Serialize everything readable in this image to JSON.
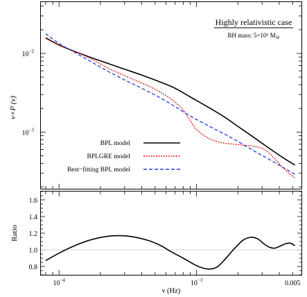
{
  "chart_data": [
    {
      "type": "line",
      "panel": "top",
      "annotation_title": "Highly relativistic case",
      "annotation_sub": "BH mass: 5×10⁶ M",
      "annotation_sun": "⊙",
      "xlabel": "",
      "ylabel": "ν×P (ν)",
      "xscale": "log",
      "yscale": "log",
      "xlim": [
        7.38e-05,
        0.0058
      ],
      "ylim": [
        0.00019,
        0.045
      ],
      "yticks": [
        {
          "value": 0.01,
          "base": "10",
          "exp": "−2"
        },
        {
          "value": 0.001,
          "base": "10",
          "exp": "−3"
        }
      ],
      "legend_position": "bottom-left",
      "series": [
        {
          "name": "BPL model",
          "color": "#000000",
          "dash": "solid",
          "x": [
            8e-05,
            0.0001,
            0.00013,
            0.00017,
            0.00022,
            0.0003,
            0.0004,
            0.00055,
            0.0007,
            0.0009,
            0.0012,
            0.0016,
            0.002,
            0.0026,
            0.0033,
            0.0042,
            0.0052
          ],
          "y": [
            0.0158,
            0.0128,
            0.0106,
            0.0089,
            0.0076,
            0.0063,
            0.0053,
            0.0043,
            0.0036,
            0.0028,
            0.0021,
            0.00155,
            0.00118,
            0.00086,
            0.00064,
            0.00048,
            0.00038
          ]
        },
        {
          "name": "BPLGRE model",
          "color": "#e8140f",
          "dash": "dotted",
          "x": [
            8e-05,
            0.0001,
            0.00013,
            0.00017,
            0.00022,
            0.0003,
            0.0004,
            0.0005,
            0.0006,
            0.0007,
            0.0008,
            0.0009,
            0.001,
            0.0012,
            0.0014,
            0.0016,
            0.0019,
            0.0022,
            0.0026,
            0.003,
            0.0033,
            0.0037,
            0.0042,
            0.0047,
            0.0052
          ],
          "y": [
            0.0155,
            0.0127,
            0.0106,
            0.0086,
            0.0067,
            0.0052,
            0.0042,
            0.0035,
            0.0029,
            0.0024,
            0.0019,
            0.0014,
            0.00108,
            0.00085,
            0.00076,
            0.00072,
            0.0007,
            0.00068,
            0.00066,
            0.00062,
            0.00056,
            0.00046,
            0.00036,
            0.0003,
            0.00026
          ]
        },
        {
          "name": "Best−fitting BPL model",
          "color": "#1f3fd6",
          "dash": "dashed",
          "x": [
            8e-05,
            0.0001,
            0.00013,
            0.00017,
            0.00022,
            0.0003,
            0.0004,
            0.00055,
            0.0007,
            0.0009,
            0.0012,
            0.0016,
            0.002,
            0.0026,
            0.0033,
            0.0042,
            0.0052
          ],
          "y": [
            0.0178,
            0.0134,
            0.0103,
            0.0079,
            0.0061,
            0.0046,
            0.0036,
            0.0027,
            0.0021,
            0.0016,
            0.00122,
            0.00094,
            0.00076,
            0.00058,
            0.00046,
            0.00036,
            0.00029
          ]
        }
      ]
    },
    {
      "type": "line",
      "panel": "bottom",
      "xlabel": "ν (Hz)",
      "ylabel": "Ratio",
      "xscale": "log",
      "xlim": [
        7.38e-05,
        0.0058
      ],
      "ylim": [
        0.7,
        1.7
      ],
      "yticks": [
        0.8,
        1.0,
        1.2,
        1.4,
        1.6
      ],
      "ytick_labels": [
        "0.8",
        "1.0",
        "1.2",
        "1.4",
        "1.6"
      ],
      "xticks": [
        {
          "value": 0.0001,
          "label": "",
          "base": "10",
          "exp": "−4"
        },
        {
          "value": 0.001,
          "label": "",
          "base": "10",
          "exp": "−3"
        },
        {
          "value": 0.005,
          "label": "0.005",
          "base": "",
          "exp": ""
        }
      ],
      "reference_line": 1.0,
      "series": [
        {
          "name": "",
          "color": "#000000",
          "dash": "solid",
          "x": [
            8e-05,
            0.0001,
            0.00013,
            0.00017,
            0.00022,
            0.00028,
            0.00035,
            0.00045,
            0.00055,
            0.00065,
            0.0008,
            0.001,
            0.0012,
            0.0014,
            0.0016,
            0.0019,
            0.0022,
            0.0025,
            0.0028,
            0.0031,
            0.0034,
            0.0037,
            0.004,
            0.0044,
            0.0048,
            0.0052
          ],
          "y": [
            0.87,
            0.96,
            1.05,
            1.12,
            1.16,
            1.17,
            1.155,
            1.11,
            1.05,
            0.98,
            0.9,
            0.81,
            0.77,
            0.79,
            0.88,
            1.02,
            1.12,
            1.15,
            1.13,
            1.07,
            1.03,
            1.02,
            1.04,
            1.07,
            1.08,
            1.05
          ]
        }
      ]
    }
  ]
}
